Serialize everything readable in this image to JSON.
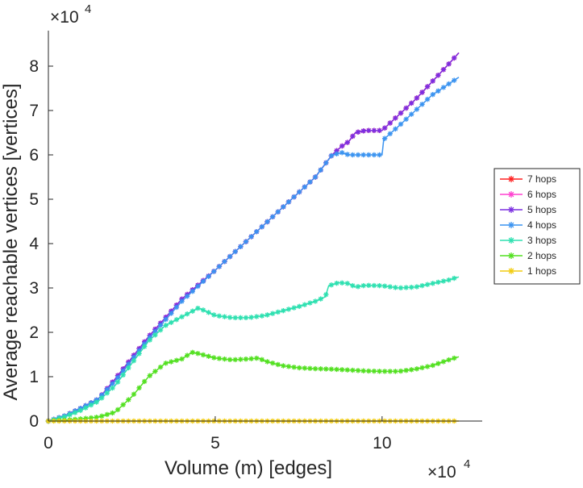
{
  "chart_data": {
    "type": "line",
    "title": "",
    "xlabel": "Volume (m) [edges]",
    "ylabel": "Average reachable vertices [vertices]",
    "x_multiplier_label": "×10",
    "x_multiplier_exp": "4",
    "y_multiplier_label": "×10",
    "y_multiplier_exp": "4",
    "xlim": [
      0,
      130000
    ],
    "ylim": [
      0,
      88000
    ],
    "x_ticks": [
      0,
      50000,
      100000
    ],
    "x_tick_labels": [
      "0",
      "5",
      "10"
    ],
    "y_ticks": [
      0,
      10000,
      20000,
      30000,
      40000,
      50000,
      60000,
      70000,
      80000
    ],
    "y_tick_labels": [
      "0",
      "1",
      "2",
      "3",
      "4",
      "5",
      "6",
      "7",
      "8"
    ],
    "grid": false,
    "legend_position": "right",
    "series": [
      {
        "name": "7 hops",
        "color": "#ff2020",
        "points": [
          [
            0,
            0
          ],
          [
            5000,
            1200
          ],
          [
            10000,
            3000
          ],
          [
            15000,
            5000
          ],
          [
            20000,
            9500
          ],
          [
            30000,
            19000
          ],
          [
            40000,
            27500
          ],
          [
            50000,
            34000
          ],
          [
            60000,
            41000
          ],
          [
            70000,
            48000
          ],
          [
            80000,
            55000
          ],
          [
            85000,
            60000
          ],
          [
            88000,
            62000
          ],
          [
            90000,
            63000
          ],
          [
            92000,
            65000
          ],
          [
            95000,
            65500
          ],
          [
            100000,
            65500
          ],
          [
            105000,
            69000
          ],
          [
            110000,
            72500
          ],
          [
            115000,
            76500
          ],
          [
            120000,
            80500
          ],
          [
            123000,
            83000
          ]
        ]
      },
      {
        "name": "6 hops",
        "color": "#ff40d0",
        "points": [
          [
            0,
            0
          ],
          [
            5000,
            1200
          ],
          [
            10000,
            3000
          ],
          [
            15000,
            5000
          ],
          [
            20000,
            9500
          ],
          [
            30000,
            19000
          ],
          [
            40000,
            27500
          ],
          [
            50000,
            34000
          ],
          [
            60000,
            41000
          ],
          [
            70000,
            48000
          ],
          [
            80000,
            55000
          ],
          [
            85000,
            60000
          ],
          [
            88000,
            62000
          ],
          [
            90000,
            63000
          ],
          [
            92000,
            65000
          ],
          [
            95000,
            65500
          ],
          [
            100000,
            65500
          ],
          [
            105000,
            69000
          ],
          [
            110000,
            72500
          ],
          [
            115000,
            76500
          ],
          [
            120000,
            80500
          ],
          [
            123000,
            83000
          ]
        ]
      },
      {
        "name": "5 hops",
        "color": "#7b2fe0",
        "points": [
          [
            0,
            0
          ],
          [
            5000,
            1200
          ],
          [
            10000,
            3000
          ],
          [
            15000,
            5000
          ],
          [
            20000,
            9500
          ],
          [
            30000,
            19000
          ],
          [
            40000,
            27500
          ],
          [
            50000,
            34000
          ],
          [
            60000,
            41000
          ],
          [
            70000,
            48000
          ],
          [
            80000,
            55000
          ],
          [
            85000,
            60000
          ],
          [
            88000,
            62000
          ],
          [
            90000,
            63000
          ],
          [
            92000,
            65000
          ],
          [
            95000,
            65500
          ],
          [
            100000,
            65500
          ],
          [
            105000,
            69000
          ],
          [
            110000,
            72500
          ],
          [
            115000,
            76500
          ],
          [
            120000,
            80500
          ],
          [
            123000,
            83000
          ]
        ]
      },
      {
        "name": "4 hops",
        "color": "#3a93f0",
        "points": [
          [
            0,
            0
          ],
          [
            5000,
            1200
          ],
          [
            10000,
            3000
          ],
          [
            15000,
            5000
          ],
          [
            20000,
            9000
          ],
          [
            30000,
            18500
          ],
          [
            40000,
            27000
          ],
          [
            50000,
            34000
          ],
          [
            60000,
            41000
          ],
          [
            70000,
            48000
          ],
          [
            80000,
            55000
          ],
          [
            85000,
            60000
          ],
          [
            88000,
            60500
          ],
          [
            90000,
            60000
          ],
          [
            95000,
            60000
          ],
          [
            100000,
            60000
          ],
          [
            100500,
            63500
          ],
          [
            105000,
            66500
          ],
          [
            110000,
            70000
          ],
          [
            115000,
            73500
          ],
          [
            120000,
            76000
          ],
          [
            123000,
            77500
          ]
        ]
      },
      {
        "name": "3 hops",
        "color": "#2ee0b0",
        "points": [
          [
            0,
            0
          ],
          [
            5000,
            1000
          ],
          [
            10000,
            2500
          ],
          [
            15000,
            4500
          ],
          [
            20000,
            8000
          ],
          [
            25000,
            13000
          ],
          [
            30000,
            18000
          ],
          [
            35000,
            21500
          ],
          [
            40000,
            23500
          ],
          [
            45000,
            25500
          ],
          [
            50000,
            23800
          ],
          [
            55000,
            23300
          ],
          [
            60000,
            23300
          ],
          [
            65000,
            23800
          ],
          [
            70000,
            24800
          ],
          [
            75000,
            25800
          ],
          [
            80000,
            27000
          ],
          [
            83000,
            28000
          ],
          [
            84000,
            30500
          ],
          [
            87000,
            31200
          ],
          [
            90000,
            31000
          ],
          [
            92000,
            30200
          ],
          [
            95000,
            30600
          ],
          [
            100000,
            30500
          ],
          [
            105000,
            30000
          ],
          [
            110000,
            30200
          ],
          [
            115000,
            31000
          ],
          [
            120000,
            31800
          ],
          [
            123000,
            32500
          ]
        ]
      },
      {
        "name": "2 hops",
        "color": "#52e020",
        "points": [
          [
            0,
            0
          ],
          [
            5000,
            200
          ],
          [
            10000,
            500
          ],
          [
            15000,
            900
          ],
          [
            20000,
            2000
          ],
          [
            25000,
            5500
          ],
          [
            30000,
            10000
          ],
          [
            35000,
            13000
          ],
          [
            40000,
            14000
          ],
          [
            43000,
            15500
          ],
          [
            45000,
            15200
          ],
          [
            50000,
            14200
          ],
          [
            55000,
            13800
          ],
          [
            60000,
            14000
          ],
          [
            63000,
            14200
          ],
          [
            65000,
            13500
          ],
          [
            70000,
            12500
          ],
          [
            75000,
            12000
          ],
          [
            80000,
            11800
          ],
          [
            85000,
            11700
          ],
          [
            90000,
            11500
          ],
          [
            95000,
            11300
          ],
          [
            100000,
            11200
          ],
          [
            105000,
            11200
          ],
          [
            110000,
            11700
          ],
          [
            115000,
            12500
          ],
          [
            120000,
            13800
          ],
          [
            123000,
            14500
          ]
        ]
      },
      {
        "name": "1 hops",
        "color": "#f2cc10",
        "points": [
          [
            0,
            0
          ],
          [
            20000,
            0
          ],
          [
            40000,
            0
          ],
          [
            60000,
            0
          ],
          [
            80000,
            0
          ],
          [
            100000,
            0
          ],
          [
            123000,
            0
          ]
        ]
      }
    ]
  }
}
